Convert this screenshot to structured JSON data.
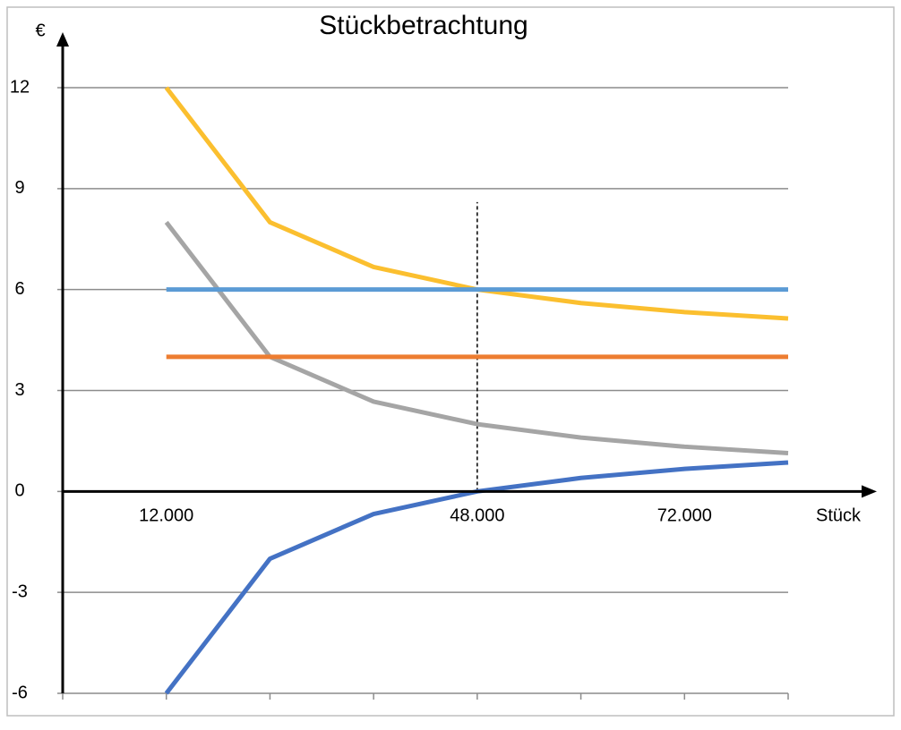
{
  "chart_data": {
    "type": "line",
    "title": "Stückbetrachtung",
    "x_label": "Stück",
    "y_label": "€",
    "x": [
      12000,
      24000,
      36000,
      48000,
      60000,
      72000,
      84000
    ],
    "series": [
      {
        "color": "#fbbf2f",
        "values": [
          12,
          8,
          6.67,
          6,
          5.6,
          5.33,
          5.14
        ]
      },
      {
        "color": "#a5a5a5",
        "values": [
          8,
          4,
          2.67,
          2,
          1.6,
          1.33,
          1.14
        ]
      },
      {
        "color": "#5b9bd5",
        "values": [
          6,
          6,
          6,
          6,
          6,
          6,
          6
        ]
      },
      {
        "color": "#ed7d31",
        "values": [
          4,
          4,
          4,
          4,
          4,
          4,
          4
        ]
      },
      {
        "color": "#4472c4",
        "values": [
          -6,
          -2,
          -0.67,
          0,
          0.4,
          0.67,
          0.86
        ]
      }
    ],
    "xlim": [
      0,
      84000
    ],
    "xticks": [
      {
        "value": 12000,
        "label": "12.000"
      },
      {
        "value": 48000,
        "label": "48.000"
      },
      {
        "value": 72000,
        "label": "72.000"
      }
    ],
    "x_tick_marks": [
      0,
      12000,
      24000,
      36000,
      48000,
      60000,
      72000,
      84000
    ],
    "ylim": [
      -6,
      12
    ],
    "yticks": [
      -6,
      -3,
      0,
      3,
      6,
      9,
      12
    ],
    "grid": true,
    "reference_line": {
      "x": 48000,
      "y": [
        0,
        8.6
      ]
    }
  }
}
